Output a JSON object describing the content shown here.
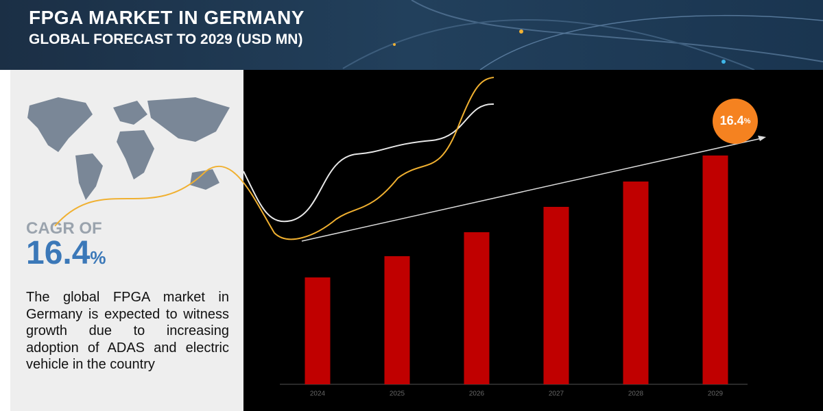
{
  "header": {
    "title": "FPGA MARKET IN GERMANY",
    "subtitle": "GLOBAL FORECAST TO 2029 (USD MN)"
  },
  "panel": {
    "cagr_label": "CAGR OF",
    "cagr": 16.4,
    "cagr_unit": "%",
    "description": "The global FPGA market in Germany is expected to witness growth due to increasing adoption of ADAS and electric vehicle in the country"
  },
  "chart_data": {
    "type": "bar",
    "categories": [
      "2024",
      "2025",
      "2026",
      "2027",
      "2028",
      "2029"
    ],
    "values": [
      156,
      187,
      222,
      259,
      296,
      334
    ],
    "color": "#c00000",
    "ylim": [
      0,
      460
    ]
  }
}
